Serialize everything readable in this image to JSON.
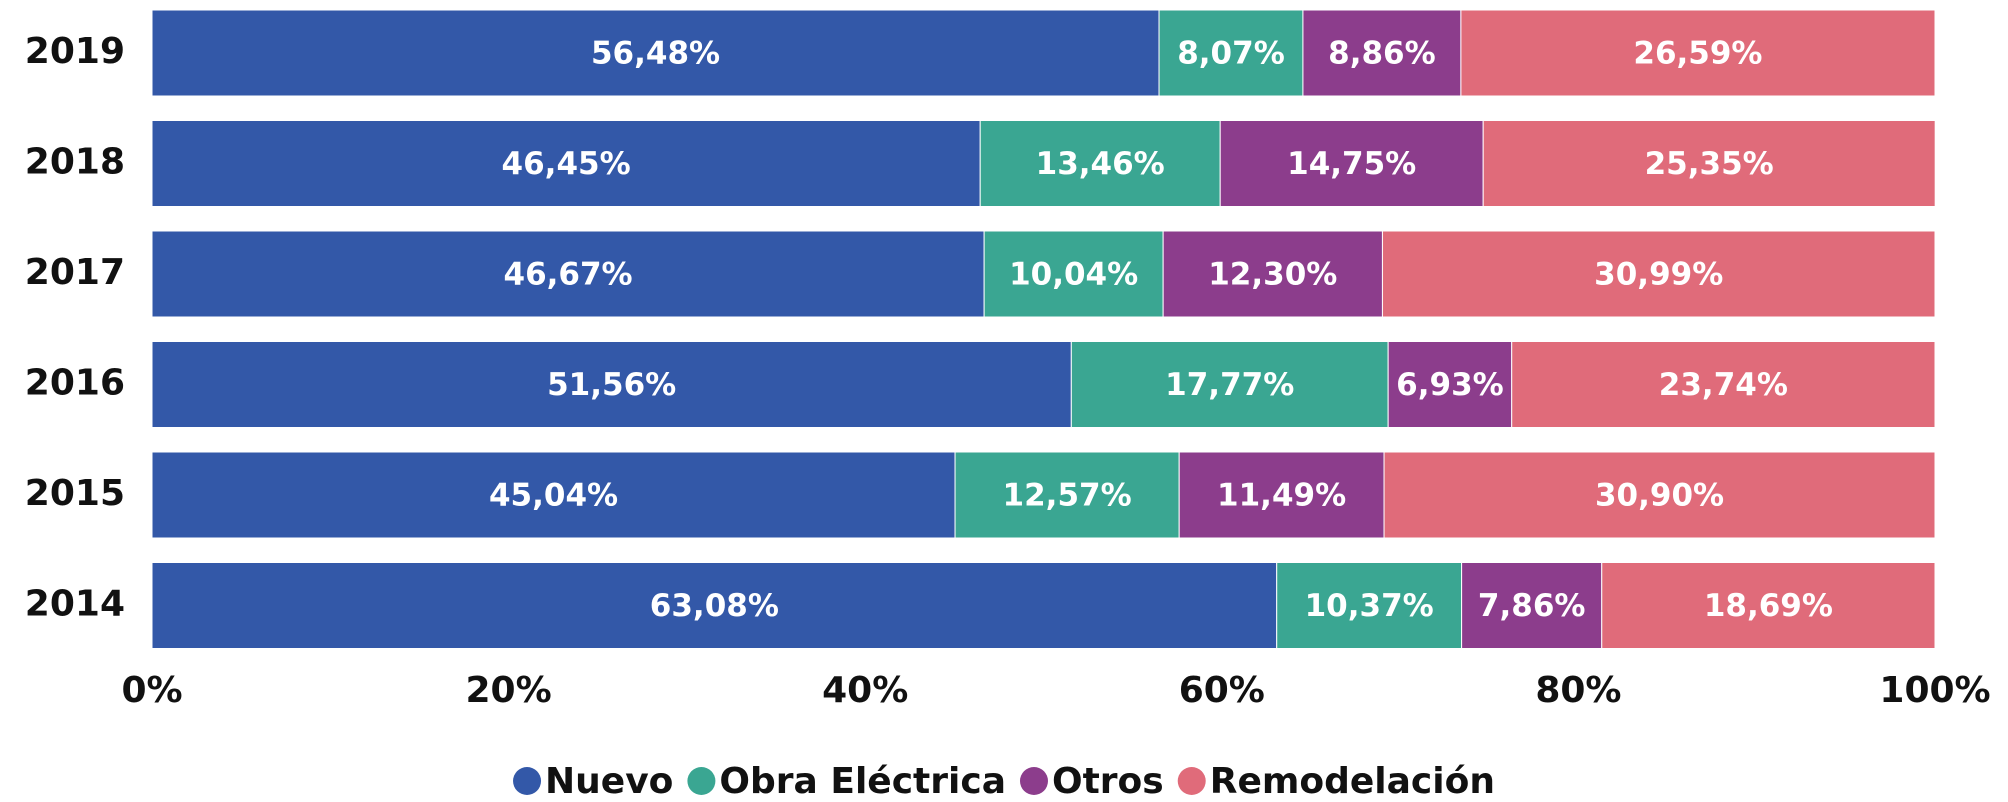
{
  "chart_data": {
    "type": "stacked-bar-horizontal",
    "categories": [
      "2019",
      "2018",
      "2017",
      "2016",
      "2015",
      "2014"
    ],
    "series": [
      {
        "name": "Nuevo",
        "color": "#3358a8",
        "values": [
          56.48,
          46.45,
          46.67,
          51.56,
          45.04,
          63.08
        ],
        "value_labels": [
          "56,48%",
          "46,45%",
          "46,67%",
          "51,56%",
          "45,04%",
          "63,08%"
        ]
      },
      {
        "name": "Obra Eléctrica",
        "color": "#3aa692",
        "values": [
          8.07,
          13.46,
          10.04,
          17.77,
          12.57,
          10.37
        ],
        "value_labels": [
          "8,07%",
          "13,46%",
          "10,04%",
          "17,77%",
          "12,57%",
          "10,37%"
        ]
      },
      {
        "name": "Otros",
        "color": "#8c3d8c",
        "values": [
          8.86,
          14.75,
          12.3,
          6.93,
          11.49,
          7.86
        ],
        "value_labels": [
          "8,86%",
          "14,75%",
          "12,30%",
          "6,93%",
          "11,49%",
          "7,86%"
        ]
      },
      {
        "name": "Remodelación",
        "color": "#e06b7a",
        "values": [
          26.59,
          25.35,
          30.99,
          23.74,
          30.9,
          18.69
        ],
        "value_labels": [
          "26,59%",
          "25,35%",
          "30,99%",
          "23,74%",
          "30,90%",
          "18,69%"
        ]
      }
    ],
    "xlim": [
      0,
      100
    ],
    "xticks": [
      {
        "value": 0,
        "label": "0%"
      },
      {
        "value": 20,
        "label": "20%"
      },
      {
        "value": 40,
        "label": "40%"
      },
      {
        "value": 60,
        "label": "60%"
      },
      {
        "value": 80,
        "label": "80%"
      },
      {
        "value": 100,
        "label": "100%"
      }
    ],
    "legend": "bottom"
  }
}
